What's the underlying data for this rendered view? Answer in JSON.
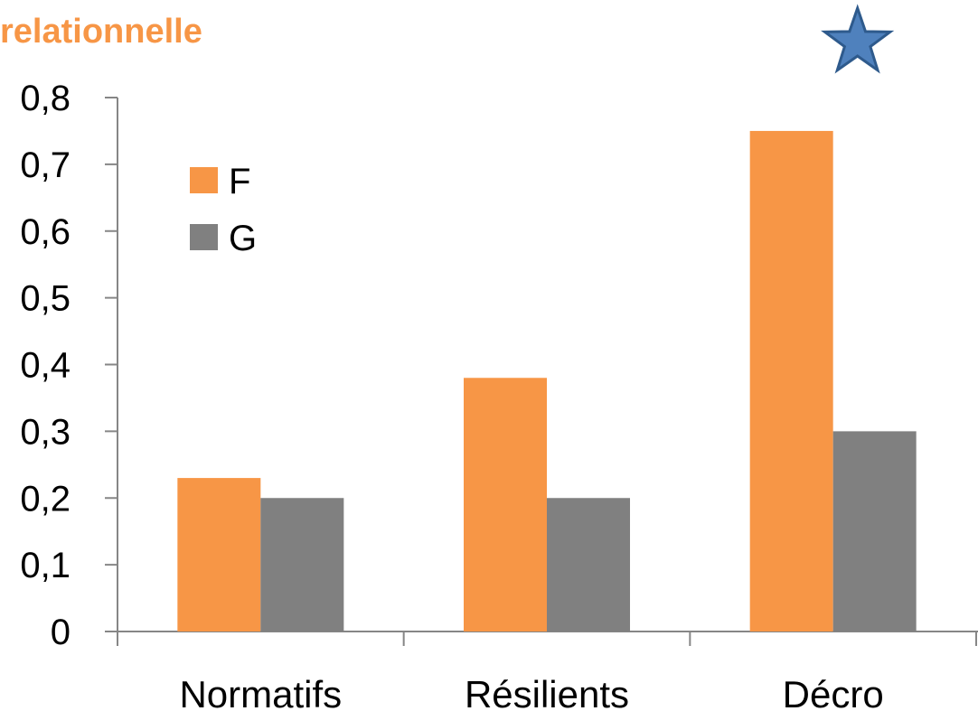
{
  "chart_data": {
    "type": "bar",
    "title": "relationnelle",
    "categories": [
      "Normatifs",
      "Résilients",
      "Décro"
    ],
    "series": [
      {
        "name": "F",
        "color": "#F79646",
        "values": [
          0.23,
          0.38,
          0.75
        ]
      },
      {
        "name": "G",
        "color": "#808080",
        "values": [
          0.2,
          0.2,
          0.3
        ]
      }
    ],
    "yticks": [
      "0",
      "0,1",
      "0,2",
      "0,3",
      "0,4",
      "0,5",
      "0,6",
      "0,7",
      "0,8"
    ],
    "ylim": [
      0,
      0.8
    ],
    "legend_position": "top-left",
    "annotations": [
      {
        "type": "star-icon",
        "category": "Décro",
        "color": "#4F81BD"
      }
    ]
  }
}
